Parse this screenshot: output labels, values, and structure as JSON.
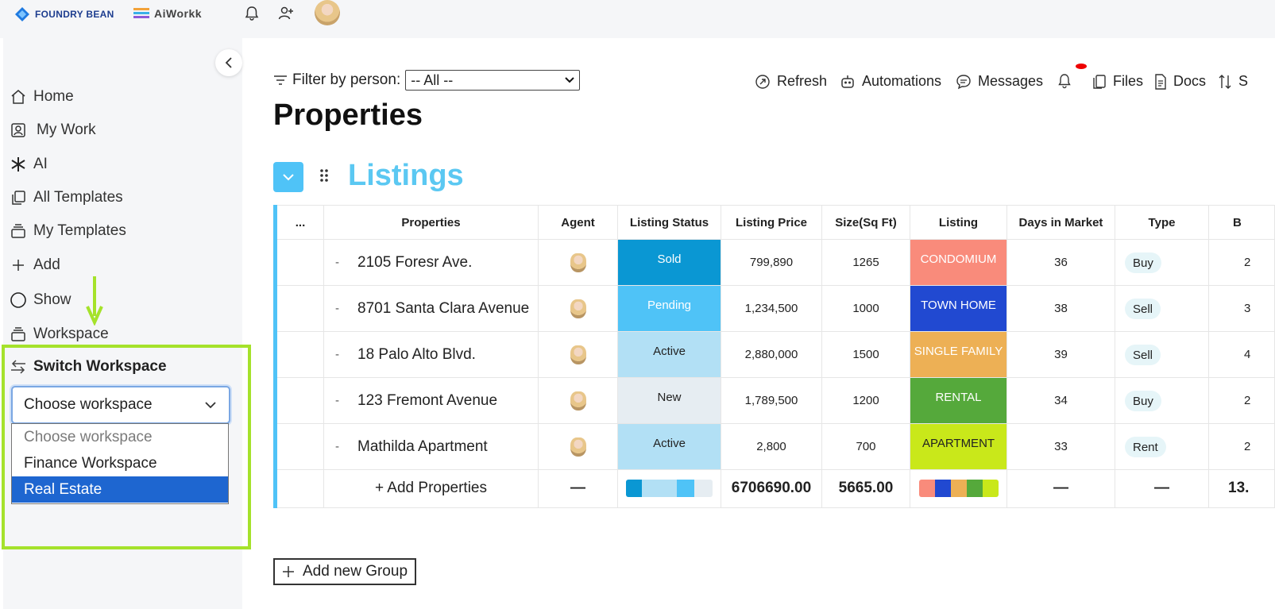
{
  "brands": {
    "foundry": "FOUNDRY BEAN",
    "aiworkk": "AiWorkk"
  },
  "sidebar": {
    "items": [
      {
        "label": "Home",
        "icon": "home-icon"
      },
      {
        "label": "My Work",
        "icon": "user-card-icon"
      },
      {
        "label": "AI",
        "icon": "asterisk-icon"
      },
      {
        "label": "All Templates",
        "icon": "copy-icon"
      },
      {
        "label": "My Templates",
        "icon": "stack-icon"
      },
      {
        "label": "Add",
        "icon": "plus-icon"
      },
      {
        "label": "Show",
        "icon": "circle-icon"
      },
      {
        "label": "Workspace",
        "icon": "stack-icon"
      }
    ],
    "switch_workspace": {
      "title": "Switch Workspace",
      "selected": "Choose workspace",
      "options": [
        "Choose workspace",
        "Finance Workspace",
        "Real Estate"
      ],
      "highlighted": "Real Estate"
    }
  },
  "filter": {
    "label": "Filter by person:",
    "value": "-- All --"
  },
  "toolbar": {
    "refresh": "Refresh",
    "automations": "Automations",
    "messages": "Messages",
    "files": "Files",
    "docs": "Docs",
    "sort": "S"
  },
  "page": {
    "title": "Properties"
  },
  "group": {
    "title": "Listings",
    "headers": [
      "...",
      "Properties",
      "Agent",
      "Listing Status",
      "Listing Price",
      "Size(Sq Ft)",
      "Listing",
      "Days in Market",
      "Type",
      "B"
    ],
    "rows": [
      {
        "property": "2105 Foresr Ave.",
        "status": "Sold",
        "status_color": "#0a97d3",
        "price": "799,890",
        "size": "1265",
        "listing": "CONDOMIUM",
        "listing_color": "#f98b7b",
        "days": "36",
        "type": "Buy",
        "b": "2"
      },
      {
        "property": "8701 Santa Clara Avenue",
        "status": "Pending",
        "status_color": "#4fc3f7",
        "price": "1,234,500",
        "size": "1000",
        "listing": "TOWN HOME",
        "listing_color": "#2149d1",
        "days": "38",
        "type": "Sell",
        "b": "3"
      },
      {
        "property": "18 Palo Alto Blvd.",
        "status": "Active",
        "status_color": "#b2e0f5",
        "price": "2,880,000",
        "size": "1500",
        "listing": "SINGLE FAMILY",
        "listing_color": "#edb055",
        "days": "39",
        "type": "Sell",
        "b": "4"
      },
      {
        "property": "123 Fremont Avenue",
        "status": "New",
        "status_color": "#e6edf2",
        "price": "1,789,500",
        "size": "1200",
        "listing": "RENTAL",
        "listing_color": "#55a93b",
        "days": "34",
        "type": "Buy",
        "b": "2"
      },
      {
        "property": "Mathilda Apartment",
        "status": "Active",
        "status_color": "#b2e0f5",
        "price": "2,800",
        "size": "700",
        "listing": "APARTMENT",
        "listing_color": "#c9e81a",
        "days": "33",
        "type": "Rent",
        "b": "2"
      }
    ],
    "footer": {
      "add_label": "+ Add Properties",
      "agent": "—",
      "price_total": "6706690.00",
      "size_total": "5665.00",
      "days": "—",
      "type": "—",
      "b": "13."
    }
  },
  "add_group": {
    "label": "Add new Group"
  }
}
